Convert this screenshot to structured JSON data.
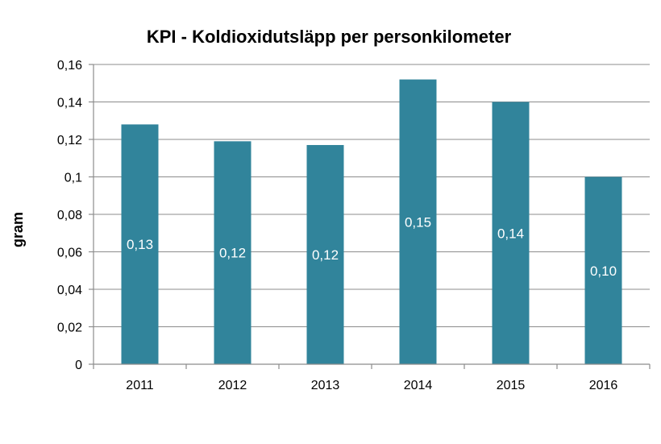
{
  "chart_data": {
    "type": "bar",
    "title": "KPI - Koldioxidutsläpp per personkilometer",
    "xlabel": "",
    "ylabel": "gram",
    "categories": [
      "2011",
      "2012",
      "2013",
      "2014",
      "2015",
      "2016"
    ],
    "values": [
      0.128,
      0.119,
      0.117,
      0.152,
      0.14,
      0.1
    ],
    "data_labels": [
      "0,13",
      "0,12",
      "0,12",
      "0,15",
      "0,14",
      "0,10"
    ],
    "ylim": [
      0,
      0.16
    ],
    "yticks": [
      0,
      0.02,
      0.04,
      0.06,
      0.08,
      0.1,
      0.12,
      0.14,
      0.16
    ],
    "ytick_labels": [
      "0",
      "0,02",
      "0,04",
      "0,06",
      "0,08",
      "0,1",
      "0,12",
      "0,14",
      "0,16"
    ],
    "grid": true,
    "legend": "none",
    "bar_color": "#31849b"
  }
}
